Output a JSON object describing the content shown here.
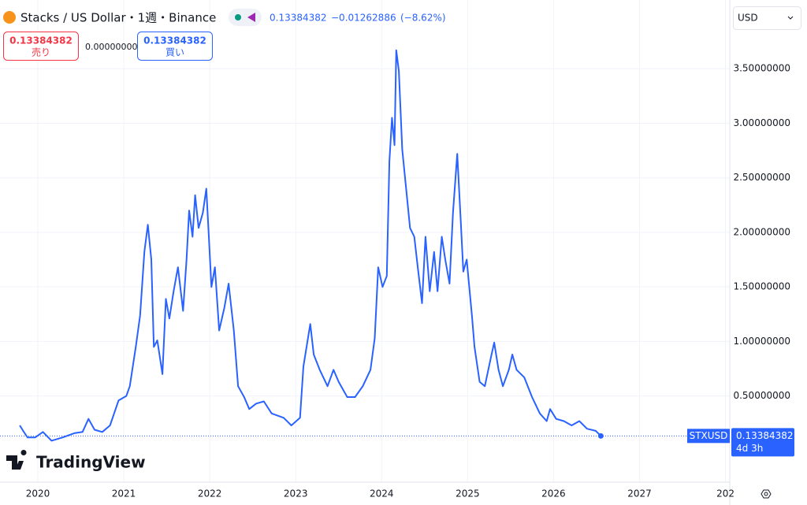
{
  "header": {
    "title": "Stacks / US Dollar・1週・Binance",
    "last": "0.13384382",
    "change": "−0.01262886",
    "change_pct": "(−8.62%)",
    "sell_label": "売り",
    "buy_label": "買い",
    "spread": "0.00000000",
    "currency": "USD",
    "symbol": "STXUSD",
    "countdown": "4d 3h",
    "brand": "TradingView"
  },
  "chart_data": {
    "type": "line",
    "color": "#2962ff",
    "grid": true,
    "x": [
      2019.79,
      2019.83,
      2019.88,
      2019.97,
      2020.06,
      2020.16,
      2020.29,
      2020.43,
      2020.52,
      2020.59,
      2020.66,
      2020.75,
      2020.84,
      2020.94,
      2021.03,
      2021.07,
      2021.14,
      2021.19,
      2021.24,
      2021.28,
      2021.32,
      2021.35,
      2021.39,
      2021.45,
      2021.49,
      2021.53,
      2021.58,
      2021.63,
      2021.69,
      2021.73,
      2021.76,
      2021.8,
      2021.83,
      2021.87,
      2021.92,
      2021.96,
      2021.99,
      2022.02,
      2022.06,
      2022.11,
      2022.17,
      2022.22,
      2022.28,
      2022.33,
      2022.4,
      2022.46,
      2022.54,
      2022.63,
      2022.72,
      2022.86,
      2022.95,
      2023.05,
      2023.09,
      2023.17,
      2023.21,
      2023.28,
      2023.37,
      2023.44,
      2023.5,
      2023.6,
      2023.69,
      2023.78,
      2023.87,
      2023.92,
      2023.96,
      2024.01,
      2024.06,
      2024.09,
      2024.12,
      2024.15,
      2024.17,
      2024.2,
      2024.24,
      2024.28,
      2024.33,
      2024.38,
      2024.42,
      2024.47,
      2024.51,
      2024.56,
      2024.61,
      2024.65,
      2024.7,
      2024.74,
      2024.79,
      2024.83,
      2024.88,
      2024.92,
      2024.95,
      2024.99,
      2025.05,
      2025.08,
      2025.14,
      2025.2,
      2025.27,
      2025.31,
      2025.36,
      2025.41,
      2025.48,
      2025.52,
      2025.57,
      2025.66,
      2025.75,
      2025.84,
      2025.92,
      2025.96,
      2026.03,
      2026.12,
      2026.21,
      2026.3,
      2026.39,
      2026.49,
      2026.55
    ],
    "values": [
      0.23,
      0.18,
      0.12,
      0.12,
      0.17,
      0.09,
      0.12,
      0.16,
      0.17,
      0.29,
      0.19,
      0.17,
      0.23,
      0.46,
      0.5,
      0.59,
      0.95,
      1.24,
      1.82,
      2.07,
      1.75,
      0.95,
      1.01,
      0.7,
      1.39,
      1.21,
      1.46,
      1.68,
      1.28,
      1.75,
      2.2,
      1.96,
      2.34,
      2.04,
      2.18,
      2.4,
      1.96,
      1.5,
      1.68,
      1.1,
      1.31,
      1.53,
      1.1,
      0.59,
      0.49,
      0.38,
      0.43,
      0.45,
      0.34,
      0.3,
      0.23,
      0.3,
      0.77,
      1.16,
      0.88,
      0.74,
      0.59,
      0.74,
      0.63,
      0.49,
      0.49,
      0.59,
      0.74,
      1.03,
      1.68,
      1.5,
      1.6,
      2.65,
      3.05,
      2.8,
      3.67,
      3.48,
      2.76,
      2.44,
      2.04,
      1.96,
      1.68,
      1.35,
      1.96,
      1.46,
      1.82,
      1.46,
      1.96,
      1.75,
      1.53,
      2.18,
      2.72,
      2.11,
      1.64,
      1.75,
      1.24,
      0.95,
      0.63,
      0.59,
      0.85,
      0.99,
      0.74,
      0.59,
      0.74,
      0.88,
      0.74,
      0.67,
      0.49,
      0.34,
      0.27,
      0.38,
      0.29,
      0.27,
      0.23,
      0.27,
      0.2,
      0.18,
      0.13384382
    ],
    "xlim": [
      2019.56,
      2028.05
    ],
    "xticks": [
      2020,
      2021,
      2022,
      2023,
      2024,
      2025,
      2026,
      2027,
      {
        "value": 2028,
        "label": "202"
      }
    ],
    "ylim": [
      -0.29,
      4.13
    ],
    "yticks": [
      {
        "value": 0.5,
        "label": "0.50000000"
      },
      {
        "value": 1,
        "label": "1.00000000"
      },
      {
        "value": 1.5,
        "label": "1.50000000"
      },
      {
        "value": 2,
        "label": "2.00000000"
      },
      {
        "value": 2.5,
        "label": "2.50000000"
      },
      {
        "value": 3,
        "label": "3.00000000"
      },
      {
        "value": 3.5,
        "label": "3.50000000"
      }
    ]
  }
}
